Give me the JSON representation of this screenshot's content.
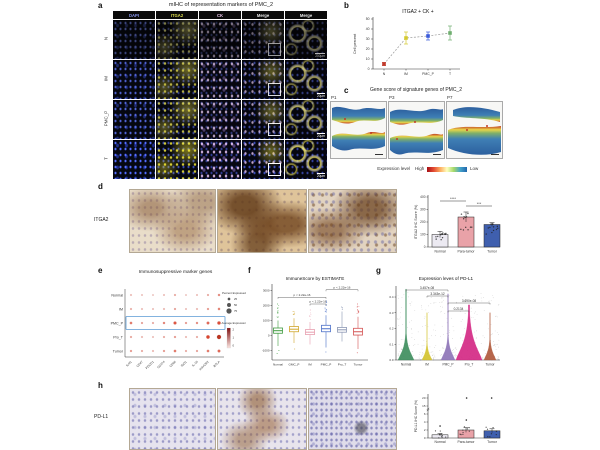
{
  "panels": {
    "a": {
      "label": "a",
      "title": "mIHC of representation markers of PMC_2",
      "col_headers": [
        "DAPI",
        "ITGA2",
        "CK",
        "Merge",
        "Merge"
      ],
      "header_colors": [
        "#8a97f0",
        "#e3e34e",
        "#efc9ef",
        "#e8e8e8",
        "#e8e8e8"
      ],
      "row_labels": [
        "N",
        "IM",
        "PMC_P",
        "T"
      ],
      "scale_labels": [
        "200μm",
        "20μm",
        "20μm",
        "20μm"
      ]
    },
    "b": {
      "label": "b"
    },
    "c": {
      "label": "c",
      "title": "Gene score of signature genes of PMC_2",
      "samples": [
        "P1",
        "P3",
        "P7"
      ],
      "legend_title": "Expression level",
      "legend_high": "High",
      "legend_low": "Low"
    },
    "d": {
      "label": "d",
      "marker": "ITGA2"
    },
    "e": {
      "label": "e",
      "title": "Immunosuppressive marker genes"
    },
    "f": {
      "label": "f"
    },
    "g": {
      "label": "g"
    },
    "h": {
      "label": "h",
      "marker": "PD-L1"
    }
  },
  "chart_data": {
    "b": {
      "type": "scatter",
      "title": "ITGA2 + CK +",
      "ylabel": "Cell percent",
      "ylim": [
        0,
        50
      ],
      "yticks": [
        0,
        10,
        20,
        30,
        40,
        50
      ],
      "categories": [
        "N",
        "IM",
        "PMC_P",
        "T"
      ],
      "values": [
        5,
        31,
        33,
        36
      ],
      "errors": [
        1.5,
        6,
        4,
        7
      ],
      "colors": [
        "#c0392b",
        "#d4c92f",
        "#3b5bdb",
        "#6fae6f"
      ],
      "line_style": "dashed"
    },
    "d_bar": {
      "type": "bar",
      "ylabel": "ITGA2 IHC Score (%)",
      "ylim": [
        0,
        400
      ],
      "yticks": [
        0,
        100,
        200,
        300,
        400
      ],
      "categories": [
        "Normal",
        "Para-tumor",
        "Tumor"
      ],
      "values": [
        100,
        240,
        180
      ],
      "errors": [
        25,
        40,
        15
      ],
      "colors": [
        "#eceaf2",
        "#e9a2a8",
        "#3f5fae"
      ],
      "significance": [
        {
          "from": 0,
          "to": 1,
          "label": "****"
        },
        {
          "from": 1,
          "to": 2,
          "label": "***"
        }
      ]
    },
    "e_dot": {
      "type": "dotplot",
      "rows": [
        "Normal",
        "IM",
        "PMC_P",
        "Pro_T",
        "Tumor"
      ],
      "genes": [
        "IL4I1",
        "CD47",
        "PDCD1",
        "CD274",
        "CD86",
        "IDO1",
        "IL-10",
        "HAVCR2",
        "BTLA"
      ],
      "highlight_row": "PMC_P",
      "percent_expressed": [
        [
          8,
          5,
          4,
          6,
          10,
          4,
          6,
          10,
          18
        ],
        [
          10,
          7,
          6,
          8,
          12,
          6,
          8,
          14,
          20
        ],
        [
          22,
          12,
          10,
          18,
          32,
          14,
          16,
          28,
          38
        ],
        [
          12,
          8,
          6,
          10,
          14,
          8,
          10,
          40,
          55
        ],
        [
          14,
          10,
          8,
          14,
          22,
          10,
          12,
          22,
          28
        ]
      ],
      "avg_expression": [
        [
          0.3,
          0.2,
          0.2,
          0.3,
          0.5,
          0.2,
          0.3,
          0.5,
          0.8
        ],
        [
          0.4,
          0.3,
          0.3,
          0.4,
          0.6,
          0.3,
          0.4,
          0.7,
          0.9
        ],
        [
          1.0,
          0.6,
          0.5,
          0.9,
          1.4,
          0.7,
          0.8,
          1.2,
          1.5
        ],
        [
          0.5,
          0.4,
          0.3,
          0.5,
          0.7,
          0.4,
          0.5,
          1.6,
          2.0
        ],
        [
          0.7,
          0.5,
          0.4,
          0.7,
          1.0,
          0.5,
          0.6,
          1.0,
          1.2
        ]
      ],
      "size_legend": {
        "title": "Percent Expressed",
        "values": [
          25,
          50,
          75
        ]
      },
      "color_legend": {
        "title": "Average Expression",
        "values": [
          2,
          1,
          0
        ]
      }
    },
    "f_box": {
      "type": "box",
      "title": "ImmuneScore by ESTIMATE",
      "ylim": [
        -1500,
        3300
      ],
      "yticks": [
        -1000,
        0,
        1000,
        2000,
        3000
      ],
      "categories": [
        "Normal",
        "GMC_P",
        "IM",
        "PMC_P",
        "Pro_T",
        "Tumor"
      ],
      "colors": [
        "#3f9b3f",
        "#d0a62a",
        "#e8a0b0",
        "#4a6fc8",
        "#8b97b4",
        "#d45252"
      ],
      "boxes": [
        {
          "lo": -700,
          "q1": 150,
          "med": 320,
          "q3": 500,
          "hi": 1000,
          "outliers": [
            1500,
            1800,
            2100,
            -1000,
            -1200
          ]
        },
        {
          "lo": -500,
          "q1": 250,
          "med": 420,
          "q3": 600,
          "hi": 1150,
          "outliers": [
            1400,
            1600,
            -900
          ]
        },
        {
          "lo": -600,
          "q1": 60,
          "med": 220,
          "q3": 400,
          "hi": 900,
          "outliers": [
            1300,
            1700
          ]
        },
        {
          "lo": -800,
          "q1": 250,
          "med": 450,
          "q3": 680,
          "hi": 1350,
          "outliers": [
            1700,
            2000,
            2300,
            -1100
          ]
        },
        {
          "lo": -400,
          "q1": 220,
          "med": 380,
          "q3": 540,
          "hi": 1600,
          "outliers": [
            1900
          ]
        },
        {
          "lo": -900,
          "q1": 30,
          "med": 250,
          "q3": 480,
          "hi": 1250,
          "outliers": [
            1600,
            1900,
            2100,
            -1150
          ]
        }
      ],
      "significance": [
        {
          "from": 0,
          "to": 3,
          "label": "p < 2.22e-16",
          "y": 2550
        },
        {
          "from": 2,
          "to": 3,
          "label": "p < 2.22e-16",
          "y": 2100
        },
        {
          "from": 3,
          "to": 5,
          "label": "p < 2.22e-16",
          "y": 3050
        }
      ]
    },
    "g_violin": {
      "type": "violin",
      "title": "Expression leves of PD-L1",
      "ylim": [
        0,
        0.47
      ],
      "yticks": [
        0.0,
        0.1,
        0.2,
        0.3,
        0.4
      ],
      "categories": [
        "Normal",
        "IM",
        "PMC_P",
        "Pro_T",
        "Tumor"
      ],
      "colors": [
        "#3f8f5f",
        "#d4c430",
        "#8f76b8",
        "#d42a85",
        "#b05a3c"
      ],
      "violins": [
        {
          "peak": 0.45,
          "bulk": 0.05,
          "width": 8
        },
        {
          "peak": 0.3,
          "bulk": 0.032,
          "width": 5
        },
        {
          "peak": 0.42,
          "bulk": 0.045,
          "width": 7
        },
        {
          "peak": 0.35,
          "bulk": 0.09,
          "width": 13
        },
        {
          "peak": 0.3,
          "bulk": 0.04,
          "width": 6
        }
      ],
      "significance": [
        {
          "from": 0,
          "to": 2,
          "label": "3.457e-08"
        },
        {
          "from": 1,
          "to": 2,
          "label": "3.343e-12"
        },
        {
          "from": 2,
          "to": 4,
          "label": "3.690e-08"
        },
        {
          "from": 2,
          "to": 3,
          "label": "0.2134"
        }
      ]
    },
    "h_bar": {
      "type": "bar",
      "ylabel": "PD-L1 IHC Score (%)",
      "yticks": [
        0,
        2,
        4,
        6,
        15,
        20
      ],
      "categories": [
        "Normal",
        "Para-tumor",
        "Tumor"
      ],
      "values": [
        0.8,
        2.0,
        1.8
      ],
      "errors": [
        0.3,
        0.6,
        0.5
      ],
      "colors": [
        "#eceaf2",
        "#e9a2a8",
        "#3f5fae"
      ],
      "outliers": [
        [
          3
        ],
        [
          4.5,
          20
        ],
        [
          20
        ]
      ]
    }
  }
}
